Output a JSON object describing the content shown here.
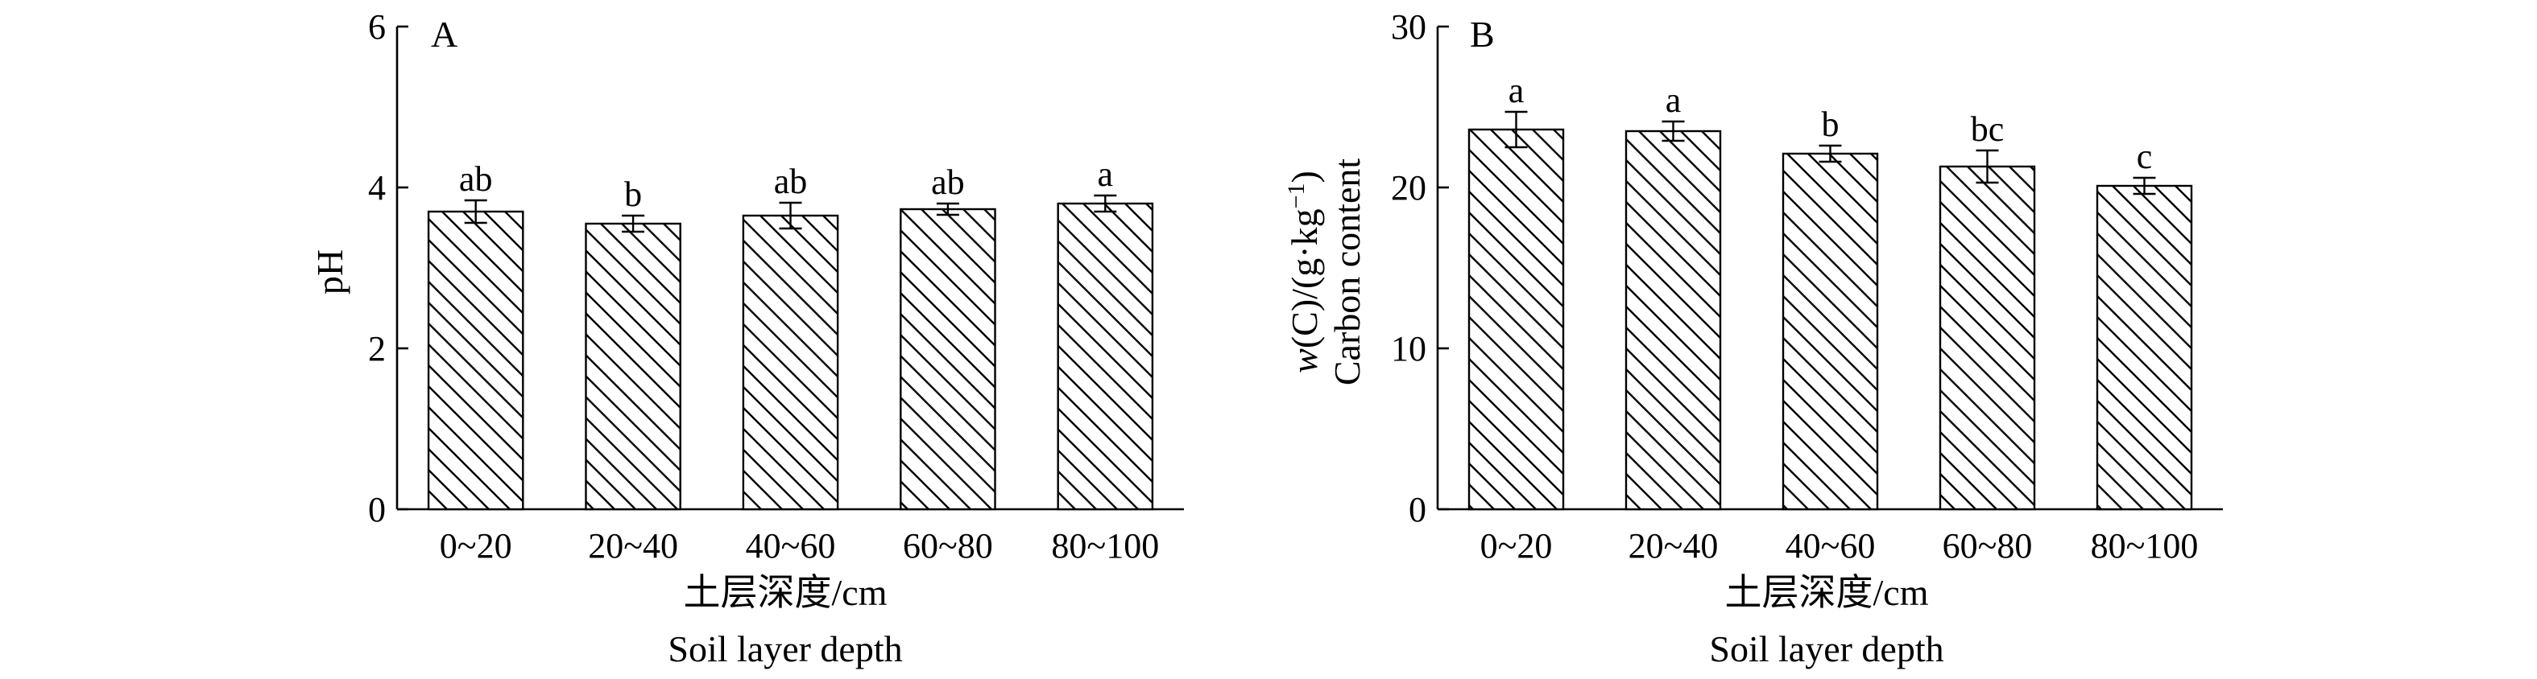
{
  "chart_data": [
    {
      "type": "bar",
      "panel_label": "A",
      "categories": [
        "0~20",
        "20~40",
        "40~60",
        "60~80",
        "80~100"
      ],
      "values": [
        3.7,
        3.55,
        3.65,
        3.73,
        3.8
      ],
      "errors": [
        0.14,
        0.1,
        0.16,
        0.07,
        0.1
      ],
      "significance": [
        "ab",
        "b",
        "ab",
        "ab",
        "a"
      ],
      "ylabel": "pH",
      "xlabel_cn": "土层深度/cm",
      "xlabel_en": "Soil layer depth",
      "ylim": [
        0,
        6
      ],
      "yticks": [
        "0",
        "2",
        "4",
        "6"
      ],
      "fill": "diagonal hatch",
      "grid": false
    },
    {
      "type": "bar",
      "panel_label": "B",
      "categories": [
        "0~20",
        "20~40",
        "40~60",
        "60~80",
        "80~100"
      ],
      "values": [
        23.6,
        23.5,
        22.1,
        21.3,
        20.1
      ],
      "errors": [
        1.1,
        0.6,
        0.5,
        1.0,
        0.5
      ],
      "significance": [
        "a",
        "a",
        "b",
        "bc",
        "c"
      ],
      "ylabel_line1_prefix": "w",
      "ylabel_line1_rest": "(C)/(g·kg",
      "ylabel_line1_sup": "−1",
      "ylabel_line1_close": ")",
      "ylabel_line2": "Carbon content",
      "xlabel_cn": "土层深度/cm",
      "xlabel_en": "Soil layer depth",
      "ylim": [
        0,
        30
      ],
      "yticks": [
        "0",
        "10",
        "20",
        "30"
      ],
      "fill": "diagonal hatch",
      "grid": false
    }
  ]
}
